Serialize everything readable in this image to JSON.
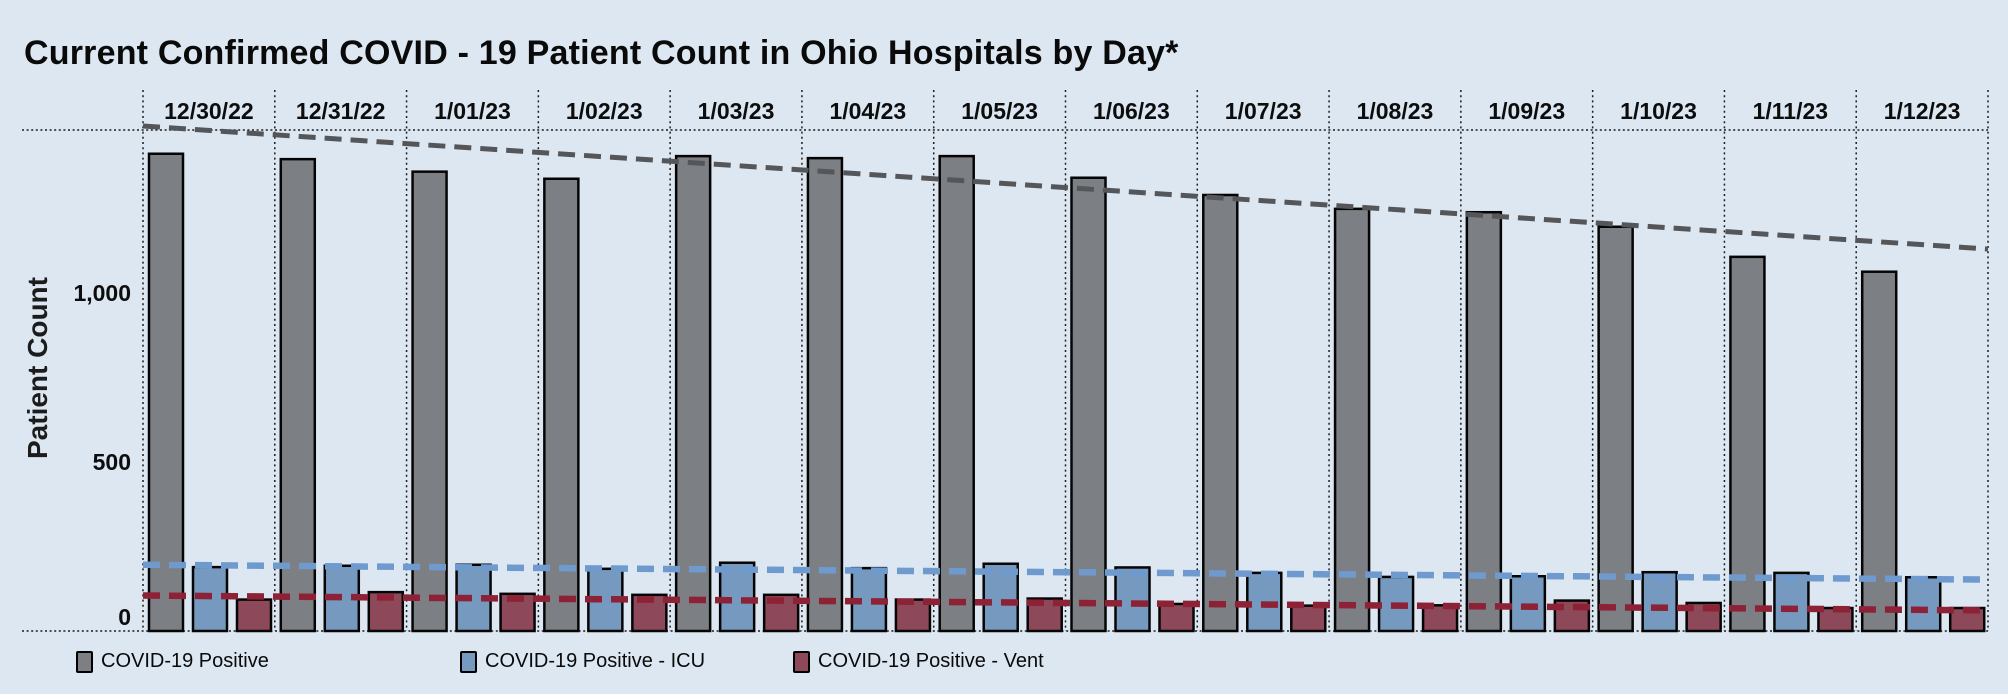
{
  "chart_data": {
    "type": "bar",
    "title": "Current Confirmed COVID - 19 Patient Count in Ohio Hospitals by Day*",
    "ylabel": "Patient Count",
    "categories": [
      "12/30/22",
      "12/31/22",
      "1/01/23",
      "1/02/23",
      "1/03/23",
      "1/04/23",
      "1/05/23",
      "1/06/23",
      "1/07/23",
      "1/08/23",
      "1/09/23",
      "1/10/23",
      "1/11/23",
      "1/12/23"
    ],
    "series": [
      {
        "name": "COVID-19 Positive",
        "color": "#7c7f83",
        "values": [
          1412,
          1396,
          1359,
          1338,
          1405,
          1399,
          1405,
          1341,
          1290,
          1249,
          1239,
          1196,
          1107,
          1063
        ],
        "trendline": {
          "start": 1494,
          "end": 1130,
          "color": "#55565a"
        }
      },
      {
        "name": "COVID-19 Positive - ICU",
        "color": "#7699bf",
        "values": [
          189,
          193,
          196,
          184,
          202,
          186,
          199,
          188,
          172,
          160,
          162,
          174,
          172,
          159
        ],
        "trendline": {
          "start": 196,
          "end": 152,
          "color": "#6f9ace"
        }
      },
      {
        "name": "COVID-19 Positive - Vent",
        "color": "#8d4859",
        "values": [
          93,
          115,
          110,
          107,
          107,
          93,
          96,
          80,
          75,
          76,
          90,
          83,
          68,
          68
        ],
        "trendline": {
          "start": 105,
          "end": 61,
          "color": "#8d2136"
        }
      }
    ],
    "yticks": [
      0,
      500,
      1000
    ],
    "ytick_labels": [
      "0",
      "500",
      "1,000"
    ],
    "ylim": [
      0,
      1483
    ],
    "grid": "dotted column separators with dotted top and bottom frame lines",
    "legend_position": "bottom",
    "background_color": "#dce7f2"
  }
}
